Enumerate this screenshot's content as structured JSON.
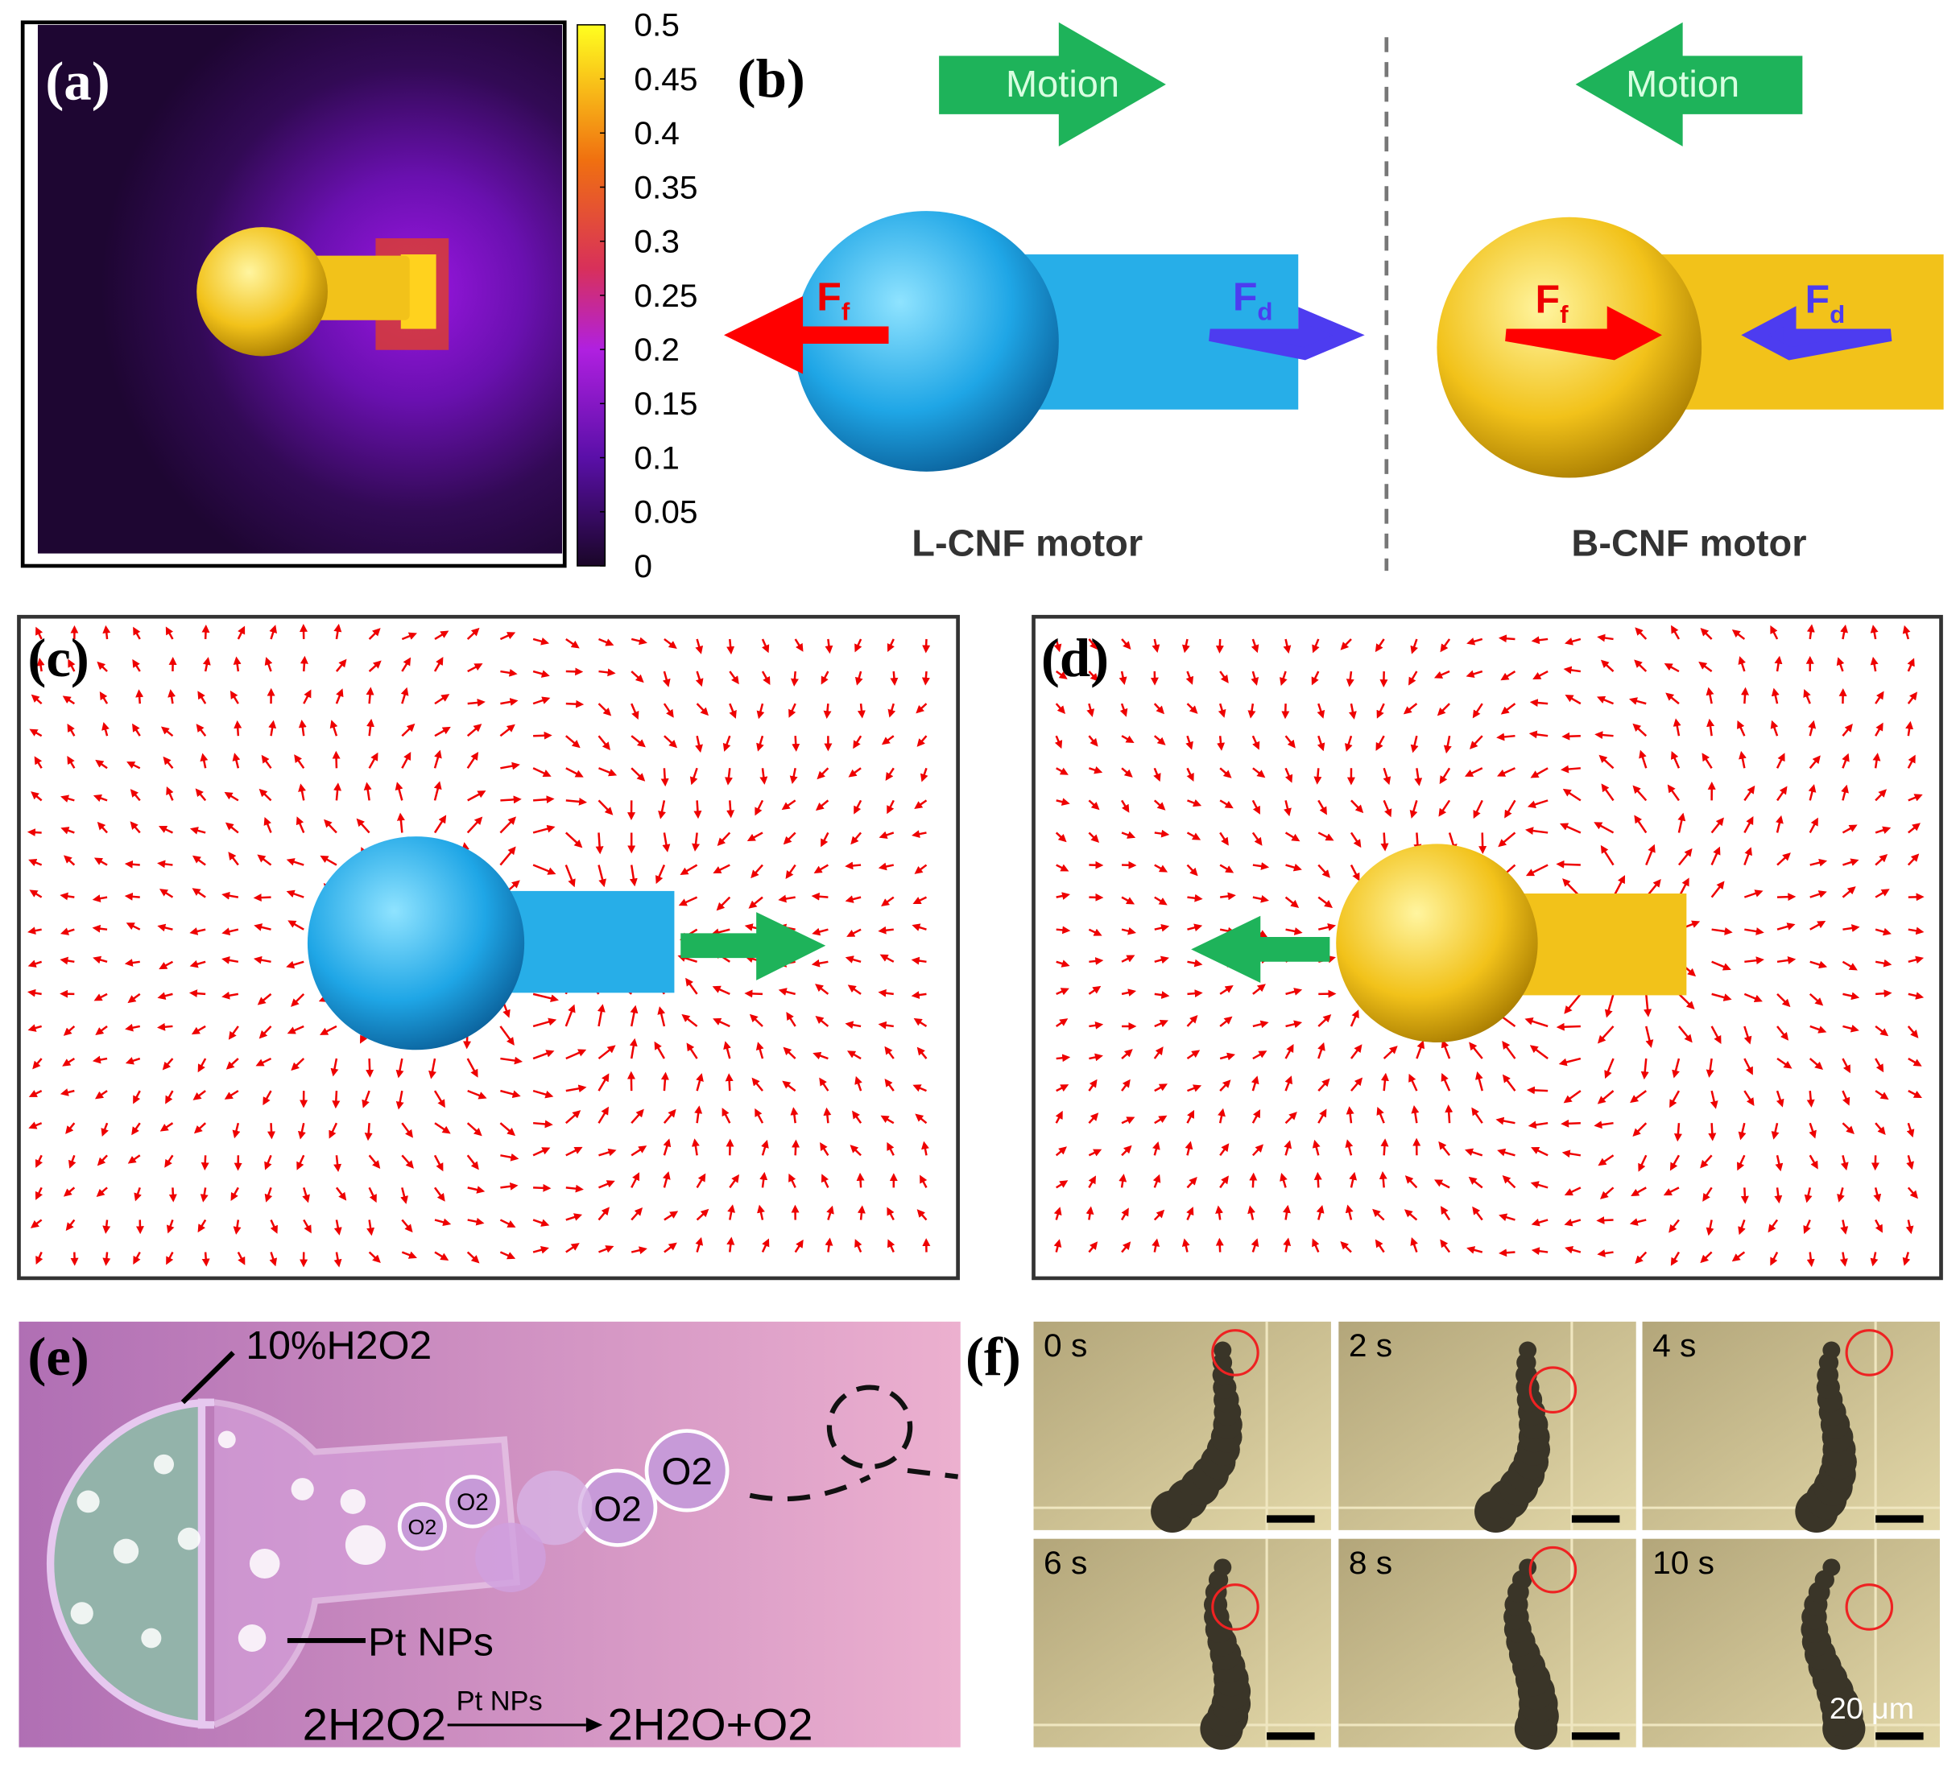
{
  "panels": {
    "a": {
      "label": "(a)",
      "colorbar": {
        "ticks": [
          0,
          0.05,
          0.1,
          0.15,
          0.2,
          0.25,
          0.3,
          0.35,
          0.4,
          0.45,
          0.5
        ],
        "range": [
          0,
          0.5
        ]
      }
    },
    "b": {
      "label": "(b)",
      "motion_left": "Motion",
      "motion_right": "Motion",
      "force_f": {
        "main": "F",
        "sub": "f"
      },
      "force_d": {
        "main": "F",
        "sub": "d"
      },
      "force_f2": {
        "main": "F",
        "sub": "f"
      },
      "force_d2": {
        "main": "F",
        "sub": "d"
      },
      "caption_left": "L-CNF motor",
      "caption_right": "B-CNF motor"
    },
    "c": {
      "label": "(c)"
    },
    "d": {
      "label": "(d)"
    },
    "e": {
      "label": "(e)",
      "fuel": "10%H2O2",
      "catalyst": "Pt NPs",
      "bubbles": [
        "O2",
        "O2",
        "O2",
        "O2"
      ],
      "reactant": "2H2O2",
      "arrow_label": "Pt NPs",
      "product": "2H2O+O2"
    },
    "f": {
      "label": "(f)",
      "times": [
        "0 s",
        "2 s",
        "4 s",
        "6 s",
        "8 s",
        "10 s"
      ],
      "scale": "20 μm"
    }
  }
}
